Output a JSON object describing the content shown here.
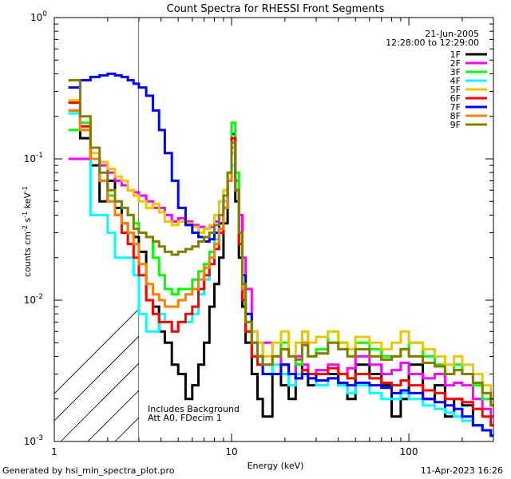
{
  "chart_data": {
    "type": "line",
    "title": "Count Spectra for RHESSI Front Segments",
    "xlabel": "Energy (keV)",
    "ylabel": "counts cm-2 s-1 keV-1",
    "x_scale": "log",
    "y_scale": "log",
    "xlim": [
      1,
      300
    ],
    "ylim": [
      0.001,
      1
    ],
    "x_ticks": [
      {
        "value": 1,
        "label": "1"
      },
      {
        "value": 10,
        "label": "10"
      },
      {
        "value": 100,
        "label": "100"
      }
    ],
    "y_ticks": [
      {
        "value": 1,
        "base": "10",
        "exp": "0"
      },
      {
        "value": 0.1,
        "base": "10",
        "exp": "-1"
      },
      {
        "value": 0.01,
        "base": "10",
        "exp": "-2"
      },
      {
        "value": 0.001,
        "base": "10",
        "exp": "-3"
      }
    ],
    "date": "21-Jun-2005",
    "time_range": "12:28:00 to 12:29:00",
    "shaded_region": {
      "x_max_keV": 3
    },
    "annotations": [
      "Includes Background",
      "Att A0, FDecim 1"
    ],
    "energy_bins": [
      1.2,
      1.4,
      1.6,
      1.8,
      2.0,
      2.2,
      2.4,
      2.6,
      2.8,
      3.0,
      3.3,
      3.6,
      3.9,
      4.2,
      4.6,
      5.0,
      5.5,
      6.0,
      6.5,
      7.0,
      7.5,
      8.0,
      8.5,
      9.0,
      9.5,
      10.0,
      10.5,
      11.0,
      11.5,
      12.0,
      13.0,
      14.0,
      15.0,
      17.0,
      19.0,
      21.0,
      23.0,
      25.0,
      27.0,
      30.0,
      35.0,
      40.0,
      45.0,
      50.0,
      60.0,
      70.0,
      80.0,
      90.0,
      100.0,
      120.0,
      140.0,
      160.0,
      180.0,
      200.0,
      230.0,
      260.0,
      290.0
    ],
    "series": [
      {
        "name": "1F",
        "color": "#000000",
        "values": [
          0.22,
          0.14,
          0.09,
          0.05,
          0.07,
          0.045,
          0.035,
          0.03,
          0.028,
          0.022,
          0.01,
          0.009,
          0.006,
          0.005,
          0.0035,
          0.003,
          0.002,
          0.0025,
          0.0035,
          0.005,
          0.009,
          0.013,
          0.02,
          0.035,
          0.07,
          0.15,
          0.05,
          0.02,
          0.009,
          0.005,
          0.003,
          0.002,
          0.0015,
          0.003,
          0.0025,
          0.002,
          0.0035,
          0.003,
          0.0025,
          0.003,
          0.003,
          0.0025,
          0.002,
          0.0035,
          0.003,
          0.0025,
          0.0015,
          0.002,
          0.0035,
          0.002,
          0.0025,
          0.0015,
          0.002,
          0.0018,
          0.0013,
          0.0012,
          0.0011
        ]
      },
      {
        "name": "2F",
        "color": "#ff00ff",
        "values": [
          0.1,
          0.1,
          0.1,
          0.09,
          0.08,
          0.07,
          0.065,
          0.06,
          0.058,
          0.055,
          0.05,
          0.045,
          0.045,
          0.04,
          0.036,
          0.038,
          0.036,
          0.034,
          0.033,
          0.032,
          0.033,
          0.036,
          0.04,
          0.05,
          0.07,
          0.14,
          0.07,
          0.04,
          0.02,
          0.012,
          0.006,
          0.004,
          0.005,
          0.004,
          0.0035,
          0.003,
          0.004,
          0.0035,
          0.003,
          0.0032,
          0.0035,
          0.003,
          0.0033,
          0.004,
          0.0035,
          0.003,
          0.0032,
          0.0036,
          0.003,
          0.0028,
          0.003,
          0.0025,
          0.0026,
          0.0025,
          0.002,
          0.0017,
          0.0015
        ]
      },
      {
        "name": "3F",
        "color": "#00ff00",
        "values": [
          0.16,
          0.18,
          0.1,
          0.07,
          0.055,
          0.05,
          0.045,
          0.04,
          0.035,
          0.03,
          0.028,
          0.02,
          0.015,
          0.012,
          0.011,
          0.012,
          0.012,
          0.014,
          0.016,
          0.018,
          0.022,
          0.025,
          0.03,
          0.045,
          0.08,
          0.18,
          0.08,
          0.03,
          0.01,
          0.006,
          0.004,
          0.0035,
          0.003,
          0.004,
          0.005,
          0.004,
          0.0035,
          0.006,
          0.004,
          0.0045,
          0.006,
          0.005,
          0.004,
          0.005,
          0.0045,
          0.004,
          0.004,
          0.0045,
          0.005,
          0.004,
          0.0035,
          0.003,
          0.0035,
          0.003,
          0.0025,
          0.002,
          0.0018
        ]
      },
      {
        "name": "4F",
        "color": "#00ffff",
        "values": [
          0.21,
          0.17,
          0.04,
          0.04,
          0.03,
          0.02,
          0.02,
          0.02,
          0.015,
          0.008,
          0.006,
          0.006,
          0.008,
          0.007,
          0.006,
          0.007,
          0.007,
          0.008,
          0.011,
          0.014,
          0.02,
          0.027,
          0.035,
          0.05,
          0.07,
          0.09,
          0.06,
          0.03,
          0.015,
          0.008,
          0.005,
          0.004,
          0.003,
          0.0035,
          0.003,
          0.0025,
          0.003,
          0.003,
          0.0028,
          0.0025,
          0.0028,
          0.0025,
          0.0022,
          0.0025,
          0.0022,
          0.002,
          0.002,
          0.0022,
          0.002,
          0.0018,
          0.0017,
          0.0016,
          0.0015,
          0.0014,
          0.0013,
          0.0012,
          0.0011
        ]
      },
      {
        "name": "5F",
        "color": "#e8c800",
        "values": [
          0.26,
          0.16,
          0.11,
          0.095,
          0.085,
          0.075,
          0.07,
          0.06,
          0.055,
          0.05,
          0.045,
          0.048,
          0.042,
          0.036,
          0.034,
          0.036,
          0.035,
          0.033,
          0.03,
          0.032,
          0.034,
          0.04,
          0.05,
          0.06,
          0.08,
          0.11,
          0.06,
          0.03,
          0.015,
          0.008,
          0.006,
          0.005,
          0.004,
          0.005,
          0.006,
          0.004,
          0.005,
          0.006,
          0.005,
          0.0055,
          0.006,
          0.005,
          0.0045,
          0.0055,
          0.005,
          0.0045,
          0.005,
          0.006,
          0.005,
          0.0045,
          0.004,
          0.0035,
          0.004,
          0.0035,
          0.003,
          0.0025,
          0.002
        ]
      },
      {
        "name": "6F",
        "color": "#ff0000",
        "values": [
          0.25,
          0.17,
          0.1,
          0.07,
          0.05,
          0.04,
          0.03,
          0.025,
          0.02,
          0.015,
          0.01,
          0.008,
          0.007,
          0.007,
          0.006,
          0.007,
          0.008,
          0.009,
          0.012,
          0.015,
          0.018,
          0.023,
          0.03,
          0.045,
          0.07,
          0.14,
          0.06,
          0.025,
          0.01,
          0.006,
          0.004,
          0.0035,
          0.003,
          0.003,
          0.0035,
          0.003,
          0.0028,
          0.0032,
          0.003,
          0.003,
          0.0033,
          0.003,
          0.0028,
          0.003,
          0.0028,
          0.0026,
          0.0025,
          0.0027,
          0.0025,
          0.0023,
          0.0022,
          0.002,
          0.002,
          0.0019,
          0.0017,
          0.0015,
          0.0013
        ]
      },
      {
        "name": "7F",
        "color": "#0000ff",
        "values": [
          0.32,
          0.36,
          0.38,
          0.39,
          0.4,
          0.39,
          0.38,
          0.36,
          0.34,
          0.32,
          0.28,
          0.22,
          0.16,
          0.11,
          0.07,
          0.045,
          0.034,
          0.03,
          0.028,
          0.026,
          0.027,
          0.03,
          0.035,
          0.045,
          0.07,
          0.12,
          0.06,
          0.03,
          0.015,
          0.008,
          0.005,
          0.004,
          0.003,
          0.003,
          0.0035,
          0.003,
          0.0028,
          0.003,
          0.0028,
          0.0027,
          0.0028,
          0.0026,
          0.0025,
          0.0026,
          0.0025,
          0.0024,
          0.0022,
          0.0023,
          0.0022,
          0.002,
          0.0019,
          0.0018,
          0.0017,
          0.0015,
          0.0013,
          0.0012,
          0.0011
        ]
      },
      {
        "name": "8F",
        "color": "#ff8000",
        "values": [
          0.22,
          0.16,
          0.1,
          0.07,
          0.05,
          0.04,
          0.035,
          0.03,
          0.025,
          0.018,
          0.013,
          0.011,
          0.01,
          0.009,
          0.009,
          0.01,
          0.011,
          0.012,
          0.014,
          0.017,
          0.02,
          0.025,
          0.032,
          0.045,
          0.07,
          0.12,
          0.06,
          0.03,
          0.012,
          0.007,
          0.005,
          0.004,
          0.0035,
          0.004,
          0.0045,
          0.004,
          0.0038,
          0.005,
          0.004,
          0.0042,
          0.005,
          0.0045,
          0.004,
          0.0045,
          0.004,
          0.0038,
          0.004,
          0.0045,
          0.004,
          0.0036,
          0.0034,
          0.003,
          0.0032,
          0.003,
          0.0026,
          0.0022,
          0.0018
        ]
      },
      {
        "name": "9F",
        "color": "#808000",
        "values": [
          0.36,
          0.2,
          0.12,
          0.08,
          0.06,
          0.05,
          0.045,
          0.04,
          0.032,
          0.03,
          0.028,
          0.026,
          0.024,
          0.022,
          0.021,
          0.022,
          0.023,
          0.024,
          0.026,
          0.028,
          0.03,
          0.034,
          0.04,
          0.055,
          0.08,
          0.13,
          0.06,
          0.03,
          0.013,
          0.007,
          0.005,
          0.004,
          0.0035,
          0.004,
          0.0045,
          0.004,
          0.0038,
          0.0048,
          0.004,
          0.0042,
          0.005,
          0.0045,
          0.004,
          0.0045,
          0.004,
          0.0038,
          0.004,
          0.0045,
          0.004,
          0.0036,
          0.0034,
          0.003,
          0.0032,
          0.003,
          0.0026,
          0.0022,
          0.0018
        ]
      }
    ]
  },
  "footer": {
    "generated_by": "Generated by hsi_min_spectra_plot.pro",
    "timestamp": "11-Apr-2023 16:26"
  }
}
